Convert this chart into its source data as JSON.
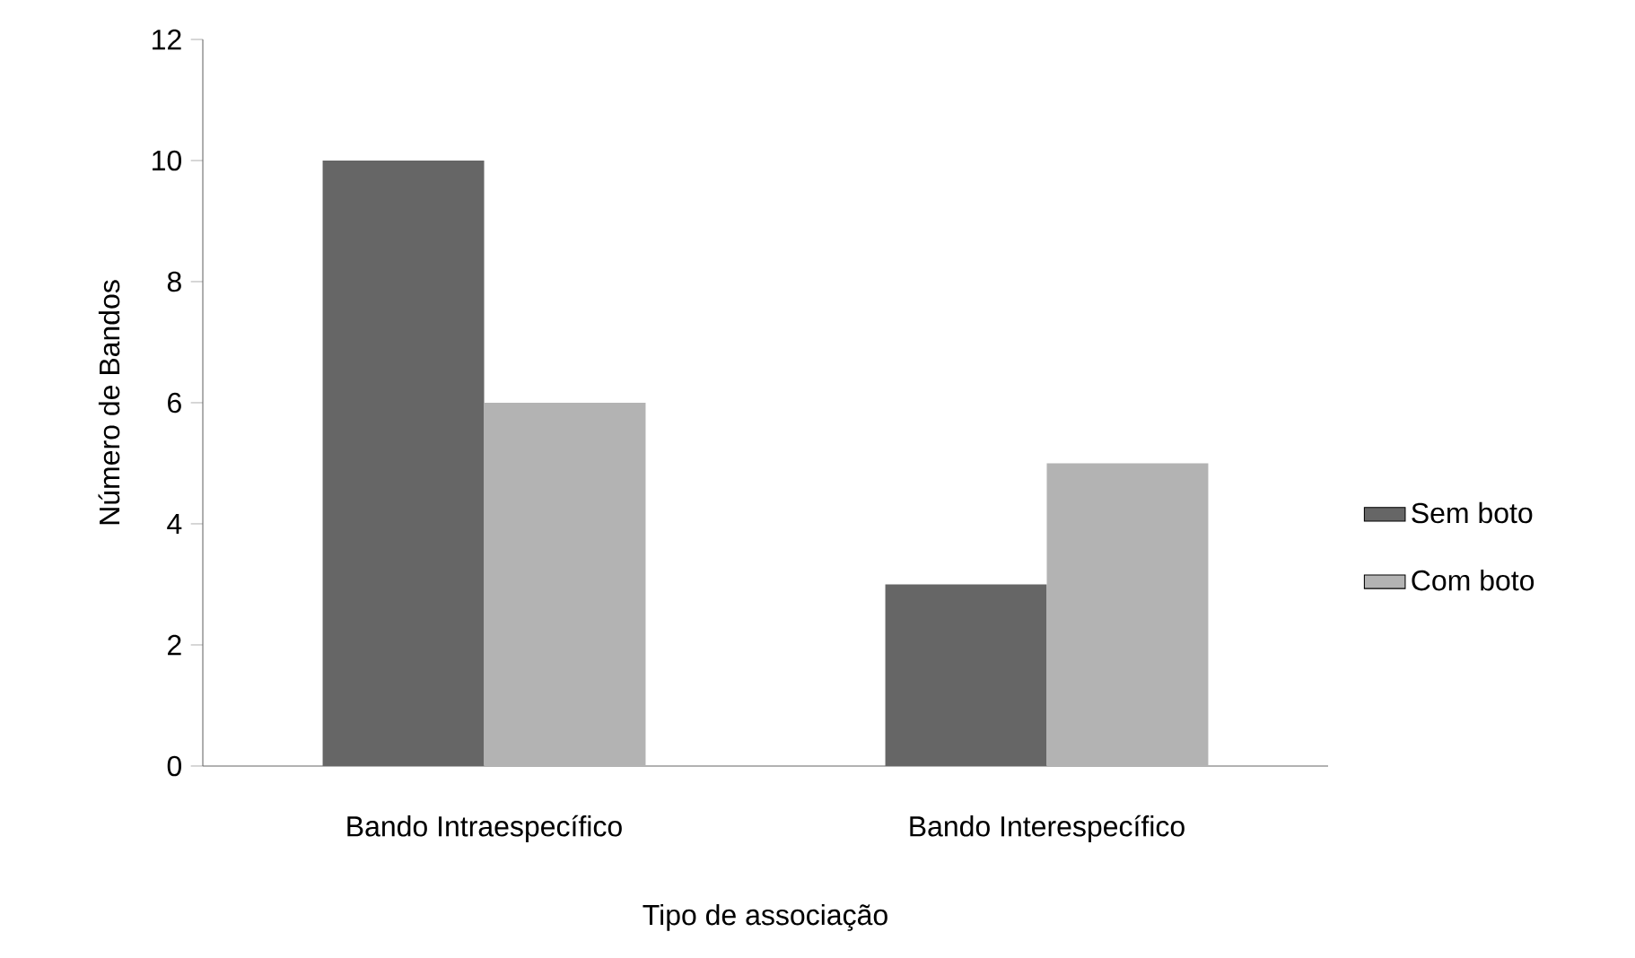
{
  "chart_data": {
    "type": "bar",
    "xlabel": "Tipo de associação",
    "ylabel": "Número de Bandos",
    "categories": [
      "Bando Intraespecífico",
      "Bando Interespecífico"
    ],
    "series": [
      {
        "name": "Sem boto",
        "color": "#666666",
        "values": [
          10,
          3
        ]
      },
      {
        "name": "Com boto",
        "color": "#b3b3b3",
        "values": [
          6,
          5
        ]
      }
    ],
    "ylim": [
      0,
      12
    ],
    "yticks": [
      0,
      2,
      4,
      6,
      8,
      10,
      12
    ],
    "legend": "right"
  }
}
